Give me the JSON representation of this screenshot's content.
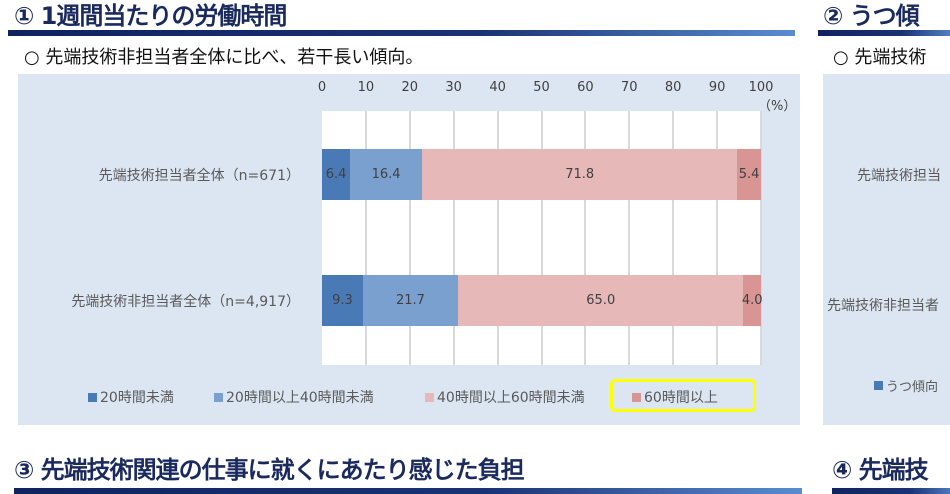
{
  "sections": {
    "s1": {
      "title": "① 1週間当たりの労働時間",
      "subtitle": "○ 先端技術非担当者全体に比べ、若干長い傾向。"
    },
    "s2": {
      "title": "② うつ傾",
      "subtitle": "○ 先端技術",
      "cat1": "先端技術担当",
      "cat2": "先端技術非担当者",
      "legend": "うつ傾向",
      "legend_color": "#4a7ab5"
    },
    "s3": {
      "title": "③ 先端技術関連の仕事に就くにあたり感じた負担"
    },
    "s4": {
      "title": "④ 先端技"
    }
  },
  "chart_data": {
    "type": "bar",
    "orientation": "horizontal",
    "stacked": true,
    "unit_label": "（%）",
    "xlim": [
      0,
      100
    ],
    "xticks": [
      "0",
      "10",
      "20",
      "30",
      "40",
      "50",
      "60",
      "70",
      "80",
      "90",
      "100"
    ],
    "grid": true,
    "legend_position": "bottom",
    "categories": [
      "先端技術担当者全体（n=671）",
      "先端技術非担当者全体（n=4,917）"
    ],
    "series": [
      {
        "name": "20時間未満",
        "color": "#4a7ab5",
        "values": [
          6.4,
          9.3
        ],
        "labels": [
          "6.4",
          "9.3"
        ]
      },
      {
        "name": "20時間以上40時間未満",
        "color": "#7aa0cf",
        "values": [
          16.4,
          21.7
        ],
        "labels": [
          "16.4",
          "21.7"
        ]
      },
      {
        "name": "40時間以上60時間未満",
        "color": "#e6b8b8",
        "values": [
          71.8,
          65.0
        ],
        "labels": [
          "71.8",
          "65.0"
        ]
      },
      {
        "name": "60時間以上",
        "color": "#d99594",
        "values": [
          5.4,
          4.0
        ],
        "labels": [
          "5.4",
          "4.0"
        ]
      }
    ],
    "highlight": {
      "legend_item": "60時間以上",
      "color": "#ffff00"
    }
  }
}
